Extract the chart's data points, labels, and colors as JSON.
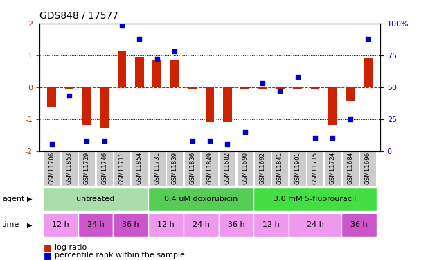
{
  "title": "GDS848 / 17577",
  "samples": [
    "GSM11706",
    "GSM11853",
    "GSM11729",
    "GSM11746",
    "GSM11711",
    "GSM11854",
    "GSM11731",
    "GSM11839",
    "GSM11836",
    "GSM11849",
    "GSM11682",
    "GSM11690",
    "GSM11692",
    "GSM11841",
    "GSM11901",
    "GSM11715",
    "GSM11724",
    "GSM11684",
    "GSM11696"
  ],
  "log_ratio": [
    -0.65,
    -0.05,
    -1.2,
    -1.3,
    1.15,
    0.95,
    0.87,
    0.87,
    -0.05,
    -1.1,
    -1.1,
    -0.05,
    -0.05,
    -0.08,
    -0.08,
    -0.08,
    -1.2,
    -0.45,
    0.92
  ],
  "percentile_rank": [
    5,
    43,
    8,
    8,
    98,
    88,
    72,
    78,
    8,
    8,
    5,
    15,
    53,
    47,
    58,
    10,
    10,
    25,
    88
  ],
  "ylim_left": [
    -2,
    2
  ],
  "ylim_right": [
    0,
    100
  ],
  "yticks_left": [
    -2,
    -1,
    0,
    1,
    2
  ],
  "yticks_right": [
    0,
    25,
    50,
    75,
    100
  ],
  "bar_color": "#cc2200",
  "dot_color": "#0000cc",
  "bar_width": 0.5,
  "agent_ranges": [
    [
      0,
      6
    ],
    [
      6,
      12
    ],
    [
      12,
      19
    ]
  ],
  "agent_labels": [
    "untreated",
    "0.4 uM doxorubicin",
    "3.0 mM 5-fluorouracil"
  ],
  "agent_colors": [
    "#aaddaa",
    "#55cc55",
    "#44dd44"
  ],
  "time_groups": [
    [
      0,
      2,
      "12 h",
      "#ee99ee"
    ],
    [
      2,
      4,
      "24 h",
      "#cc55cc"
    ],
    [
      4,
      6,
      "36 h",
      "#cc55cc"
    ],
    [
      6,
      8,
      "12 h",
      "#ee99ee"
    ],
    [
      8,
      10,
      "24 h",
      "#ee99ee"
    ],
    [
      10,
      12,
      "36 h",
      "#ee99ee"
    ],
    [
      12,
      14,
      "12 h",
      "#ee99ee"
    ],
    [
      14,
      17,
      "24 h",
      "#ee99ee"
    ],
    [
      17,
      19,
      "36 h",
      "#cc55cc"
    ]
  ],
  "sample_box_color": "#cccccc",
  "legend_bar_color": "#cc2200",
  "legend_dot_color": "#0000cc"
}
